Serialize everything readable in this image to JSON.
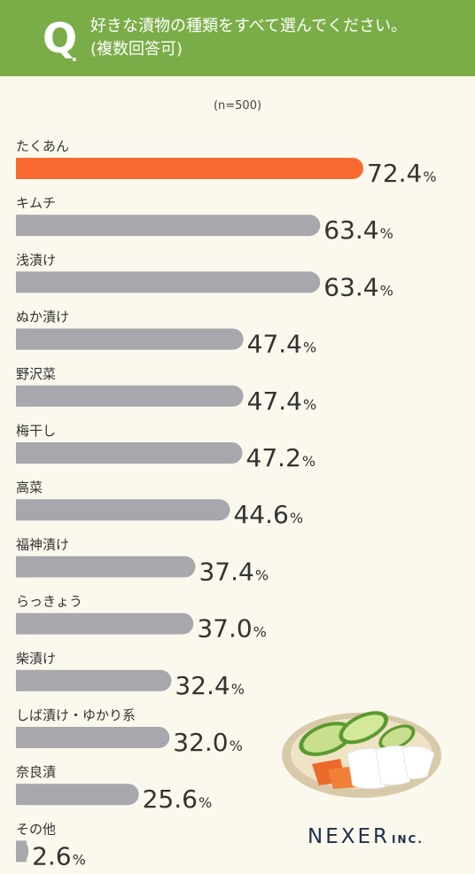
{
  "header": {
    "q_mark": "Q",
    "q_dot": ".",
    "question_line1": "好きな漬物の種類をすべて選んでください。",
    "question_line2": "(複数回答可)"
  },
  "sample_size": "(n=500)",
  "logo": {
    "name": "NEXER",
    "suffix": "INC."
  },
  "colors": {
    "header_bg": "#7aad47",
    "highlight_bar": "#f96a31",
    "bar": "#a7a7ad",
    "background": "#fbf8ee"
  },
  "chart_data": {
    "type": "bar",
    "orientation": "horizontal",
    "unit": "%",
    "categories": [
      "たくあん",
      "キムチ",
      "浅漬け",
      "ぬか漬け",
      "野沢菜",
      "梅干し",
      "高菜",
      "福神漬け",
      "らっきょう",
      "柴漬け",
      "しば漬け・ゆかり系",
      "奈良漬",
      "その他"
    ],
    "values": [
      72.4,
      63.4,
      63.4,
      47.4,
      47.4,
      47.2,
      44.6,
      37.4,
      37.0,
      32.4,
      32.0,
      25.6,
      2.6
    ],
    "value_labels": [
      "72.4",
      "63.4",
      "63.4",
      "47.4",
      "47.4",
      "47.2",
      "44.6",
      "37.4",
      "37.0",
      "32.4",
      "32.0",
      "25.6",
      "2.6"
    ],
    "highlight_index": 0,
    "grid": false
  }
}
